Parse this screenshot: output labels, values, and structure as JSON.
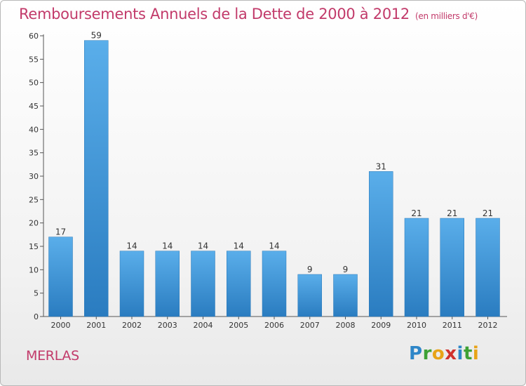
{
  "title": {
    "main": "Remboursements Annuels de la Dette de 2000 à 2012",
    "unit": "(en milliers d'€)"
  },
  "place": "MERLAS",
  "logo": {
    "text": "Proxiti",
    "letters": [
      {
        "ch": "P",
        "color": "#2e86c8"
      },
      {
        "ch": "r",
        "color": "#3ea135"
      },
      {
        "ch": "o",
        "color": "#e8a317"
      },
      {
        "ch": "x",
        "color": "#d0312d"
      },
      {
        "ch": "i",
        "color": "#2e86c8"
      },
      {
        "ch": "t",
        "color": "#3ea135"
      },
      {
        "ch": "i",
        "color": "#e8a317"
      }
    ]
  },
  "chart_data": {
    "type": "bar",
    "categories": [
      "2000",
      "2001",
      "2002",
      "2003",
      "2004",
      "2005",
      "2006",
      "2007",
      "2008",
      "2009",
      "2010",
      "2011",
      "2012"
    ],
    "values": [
      17,
      59,
      14,
      14,
      14,
      14,
      14,
      9,
      9,
      31,
      21,
      21,
      21
    ],
    "data_labels": [
      "17",
      "59",
      "14",
      "14",
      "14",
      "14",
      "14",
      "9",
      "9",
      "31",
      "21",
      "21",
      "21"
    ],
    "ylim": [
      0,
      60
    ],
    "yticks": [
      0,
      5,
      10,
      15,
      20,
      25,
      30,
      35,
      40,
      45,
      50,
      55,
      60
    ],
    "grid": false,
    "bar_color": "#3a95dc",
    "title": "Remboursements Annuels de la Dette de 2000 à 2012"
  }
}
